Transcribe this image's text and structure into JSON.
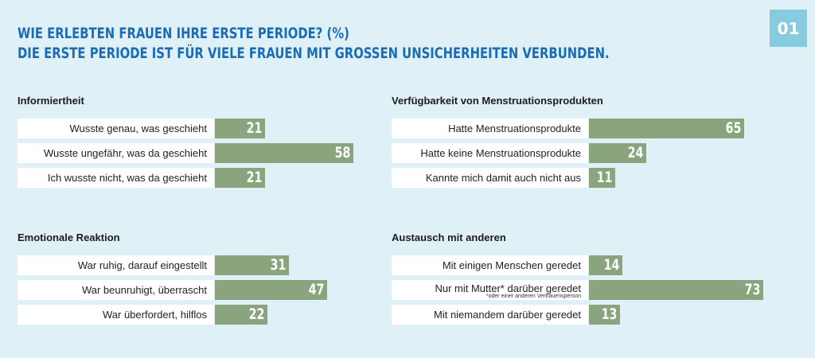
{
  "header": {
    "title_line1": "WIE ERLEBTEN FRAUEN IHRE ERSTE PERIODE? (%)",
    "title_line2": "DIE ERSTE PERIODE IST FÜR VIELE FRAUEN MIT GROSSEN UNSICHERHEITEN VERBUNDEN.",
    "badge": "01"
  },
  "colors": {
    "bar": "#8aa47e",
    "title": "#1a6db5",
    "background": "#dff0f7",
    "badge": "#86cbe0"
  },
  "chart_data": [
    {
      "type": "bar",
      "title": "Informiertheit",
      "categories": [
        "Wusste genau, was geschieht",
        "Wusste ungefähr, was da geschieht",
        "Ich wusste nicht, was da geschieht"
      ],
      "notes": [
        "",
        "",
        ""
      ],
      "values": [
        21,
        58,
        21
      ],
      "xlim": [
        0,
        100
      ]
    },
    {
      "type": "bar",
      "title": "Verfügbarkeit von Menstruationsprodukten",
      "categories": [
        "Hatte Menstruationsprodukte",
        "Hatte keine Menstruationsprodukte",
        "Kannte mich damit auch nicht aus"
      ],
      "notes": [
        "",
        "",
        ""
      ],
      "values": [
        65,
        24,
        11
      ],
      "xlim": [
        0,
        100
      ]
    },
    {
      "type": "bar",
      "title": "Emotionale Reaktion",
      "categories": [
        "War ruhig, darauf eingestellt",
        "War beunruhigt, überrascht",
        "War überfordert, hilflos"
      ],
      "notes": [
        "",
        "",
        ""
      ],
      "values": [
        31,
        47,
        22
      ],
      "xlim": [
        0,
        100
      ]
    },
    {
      "type": "bar",
      "title": "Austausch mit anderen",
      "categories": [
        "Mit einigen Menschen geredet",
        "Nur mit Mutter* darüber geredet",
        "Mit niemandem darüber geredet"
      ],
      "notes": [
        "",
        "*oder einer anderen Vertrauensperson",
        ""
      ],
      "values": [
        14,
        73,
        13
      ],
      "xlim": [
        0,
        100
      ]
    }
  ]
}
